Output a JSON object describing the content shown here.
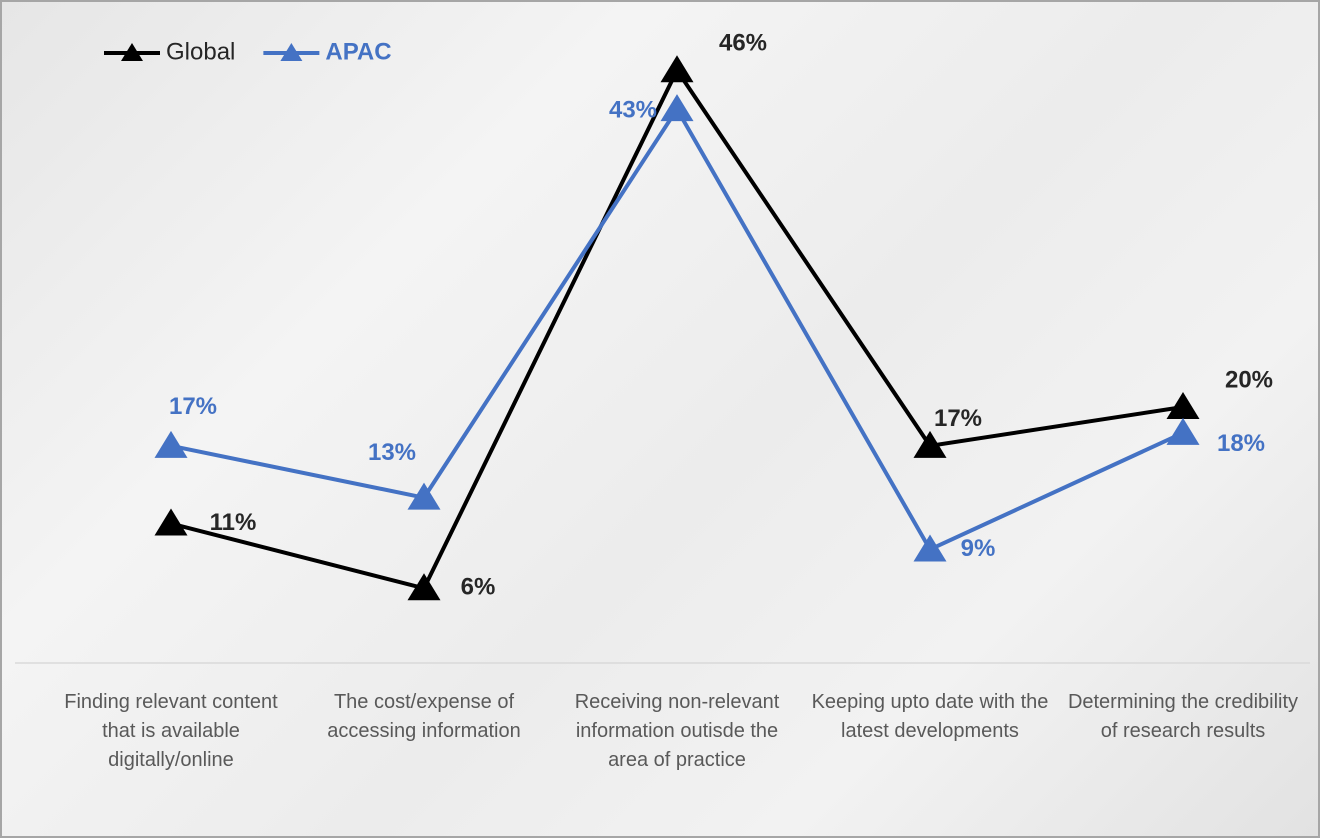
{
  "chart_data": {
    "type": "line",
    "categories": [
      "Finding relevant content that is available digitally/online",
      "The cost/expense of accessing information",
      "Receiving non-relevant information outisde the area of practice",
      "Keeping upto date with the latest developments",
      "Determining the credibility of research results"
    ],
    "series": [
      {
        "name": "Global",
        "color": "#000000",
        "values": [
          11,
          6,
          46,
          17,
          20
        ],
        "value_labels": [
          "11%",
          "6%",
          "46%",
          "17%",
          "20%"
        ]
      },
      {
        "name": "APAC",
        "color": "#4472c4",
        "values": [
          17,
          13,
          43,
          9,
          18
        ],
        "value_labels": [
          "17%",
          "13%",
          "43%",
          "9%",
          "18%"
        ]
      }
    ],
    "ylim": [
      0,
      50
    ]
  }
}
